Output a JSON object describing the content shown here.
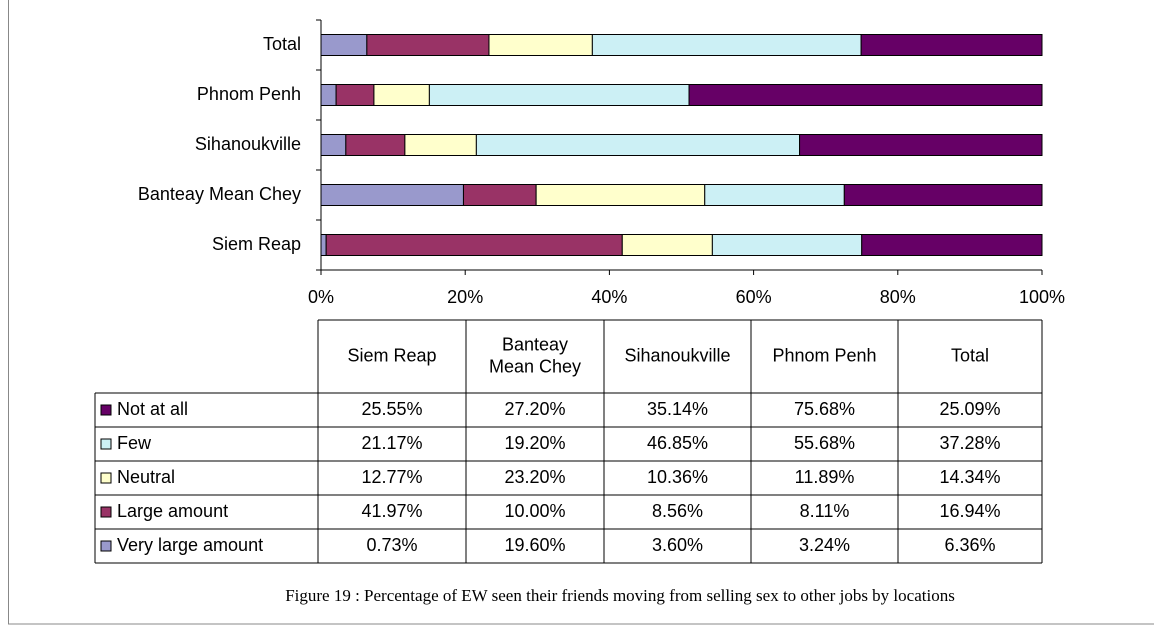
{
  "chart_data": {
    "type": "bar",
    "stacked": "percent",
    "orientation": "horizontal",
    "caption": "Figure 19 : Percentage of EW seen their friends moving from selling sex to other jobs by locations",
    "categories": [
      "Siem Reap",
      "Banteay Mean Chey",
      "Sihanoukville",
      "Phnom Penh",
      "Total"
    ],
    "series": [
      {
        "name": "Not at all",
        "color": "#660066",
        "values": [
          25.55,
          27.2,
          35.14,
          75.68,
          25.09
        ],
        "value_labels": [
          "25.55%",
          "27.20%",
          "35.14%",
          "75.68%",
          "25.09%"
        ]
      },
      {
        "name": "Few",
        "color": "#ccf0f5",
        "values": [
          21.17,
          19.2,
          46.85,
          55.68,
          37.28
        ],
        "value_labels": [
          "21.17%",
          "19.20%",
          "46.85%",
          "55.68%",
          "37.28%"
        ]
      },
      {
        "name": "Neutral",
        "color": "#ffffcc",
        "values": [
          12.77,
          23.2,
          10.36,
          11.89,
          14.34
        ],
        "value_labels": [
          "12.77%",
          "23.20%",
          "10.36%",
          "11.89%",
          "14.34%"
        ]
      },
      {
        "name": "Large amount",
        "color": "#993366",
        "values": [
          41.97,
          10.0,
          8.56,
          8.11,
          16.94
        ],
        "value_labels": [
          "41.97%",
          "10.00%",
          "8.56%",
          "8.11%",
          "16.94%"
        ]
      },
      {
        "name": "Very large amount",
        "color": "#9999cc",
        "values": [
          0.73,
          19.6,
          3.6,
          3.24,
          6.36
        ],
        "value_labels": [
          "0.73%",
          "19.60%",
          "3.60%",
          "3.24%",
          "6.36%"
        ]
      }
    ],
    "xlim": [
      0,
      100
    ],
    "xticks": [
      {
        "value": 0,
        "label": "0%"
      },
      {
        "value": 20,
        "label": "20%"
      },
      {
        "value": 40,
        "label": "40%"
      },
      {
        "value": 60,
        "label": "60%"
      },
      {
        "value": 80,
        "label": "80%"
      },
      {
        "value": 100,
        "label": "100%"
      }
    ]
  }
}
